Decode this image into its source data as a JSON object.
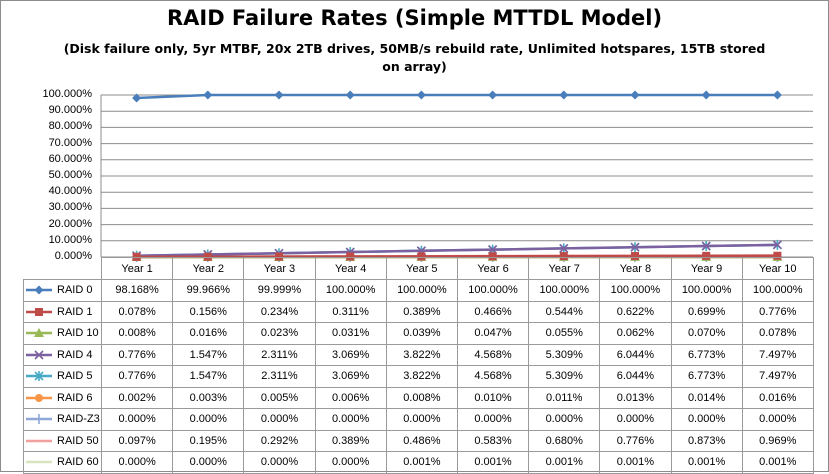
{
  "chart_data": {
    "type": "line",
    "title": "RAID Failure Rates (Simple MTTDL Model)",
    "subtitle": "(Disk failure only, 5yr MTBF, 20x 2TB drives, 50MB/s rebuild rate, Unlimited hotspares, 15TB stored on array)",
    "categories": [
      "Year 1",
      "Year 2",
      "Year 3",
      "Year 4",
      "Year 5",
      "Year 6",
      "Year 7",
      "Year 8",
      "Year 9",
      "Year 10"
    ],
    "ylim": [
      0,
      100
    ],
    "yticks": [
      "100.000%",
      "90.000%",
      "80.000%",
      "70.000%",
      "60.000%",
      "50.000%",
      "40.000%",
      "30.000%",
      "20.000%",
      "10.000%",
      "0.000%"
    ],
    "grid": true,
    "legend": "data-table",
    "series": [
      {
        "name": "RAID 0",
        "color": "#4a7ebb",
        "marker": "diamond",
        "values": [
          98.168,
          99.966,
          99.999,
          100.0,
          100.0,
          100.0,
          100.0,
          100.0,
          100.0,
          100.0
        ],
        "labels": [
          "98.168%",
          "99.966%",
          "99.999%",
          "100.000%",
          "100.000%",
          "100.000%",
          "100.000%",
          "100.000%",
          "100.000%",
          "100.000%"
        ]
      },
      {
        "name": "RAID 1",
        "color": "#be4b48",
        "marker": "square",
        "values": [
          0.078,
          0.156,
          0.234,
          0.311,
          0.389,
          0.466,
          0.544,
          0.622,
          0.699,
          0.776
        ],
        "labels": [
          "0.078%",
          "0.156%",
          "0.234%",
          "0.311%",
          "0.389%",
          "0.466%",
          "0.544%",
          "0.622%",
          "0.699%",
          "0.776%"
        ]
      },
      {
        "name": "RAID 10",
        "color": "#98b954",
        "marker": "triangle",
        "values": [
          0.008,
          0.016,
          0.023,
          0.031,
          0.039,
          0.047,
          0.055,
          0.062,
          0.07,
          0.078
        ],
        "labels": [
          "0.008%",
          "0.016%",
          "0.023%",
          "0.031%",
          "0.039%",
          "0.047%",
          "0.055%",
          "0.062%",
          "0.070%",
          "0.078%"
        ]
      },
      {
        "name": "RAID 4",
        "color": "#7d60a0",
        "marker": "x",
        "values": [
          0.776,
          1.547,
          2.311,
          3.069,
          3.822,
          4.568,
          5.309,
          6.044,
          6.773,
          7.497
        ],
        "labels": [
          "0.776%",
          "1.547%",
          "2.311%",
          "3.069%",
          "3.822%",
          "4.568%",
          "5.309%",
          "6.044%",
          "6.773%",
          "7.497%"
        ]
      },
      {
        "name": "RAID 5",
        "color": "#46aac5",
        "marker": "star",
        "values": [
          0.776,
          1.547,
          2.311,
          3.069,
          3.822,
          4.568,
          5.309,
          6.044,
          6.773,
          7.497
        ],
        "labels": [
          "0.776%",
          "1.547%",
          "2.311%",
          "3.069%",
          "3.822%",
          "4.568%",
          "5.309%",
          "6.044%",
          "6.773%",
          "7.497%"
        ]
      },
      {
        "name": "RAID 6",
        "color": "#f79646",
        "marker": "circle",
        "values": [
          0.002,
          0.003,
          0.005,
          0.006,
          0.008,
          0.01,
          0.011,
          0.013,
          0.014,
          0.016
        ],
        "labels": [
          "0.002%",
          "0.003%",
          "0.005%",
          "0.006%",
          "0.008%",
          "0.010%",
          "0.011%",
          "0.013%",
          "0.014%",
          "0.016%"
        ]
      },
      {
        "name": "RAID-Z3",
        "color": "#8fa8d8",
        "marker": "plus",
        "values": [
          0,
          0,
          0,
          0,
          0,
          0,
          0,
          0,
          0,
          0
        ],
        "labels": [
          "0.000%",
          "0.000%",
          "0.000%",
          "0.000%",
          "0.000%",
          "0.000%",
          "0.000%",
          "0.000%",
          "0.000%",
          "0.000%"
        ]
      },
      {
        "name": "RAID 50",
        "color": "#f2a09e",
        "marker": "none",
        "values": [
          0.097,
          0.195,
          0.292,
          0.389,
          0.486,
          0.583,
          0.68,
          0.776,
          0.873,
          0.969
        ],
        "labels": [
          "0.097%",
          "0.195%",
          "0.292%",
          "0.389%",
          "0.486%",
          "0.583%",
          "0.680%",
          "0.776%",
          "0.873%",
          "0.969%"
        ]
      },
      {
        "name": "RAID 60",
        "color": "#d7e4bd",
        "marker": "none",
        "values": [
          0.0,
          0.0,
          0.0,
          0.0,
          0.001,
          0.001,
          0.001,
          0.001,
          0.001,
          0.001
        ],
        "labels": [
          "0.000%",
          "0.000%",
          "0.000%",
          "0.000%",
          "0.001%",
          "0.001%",
          "0.001%",
          "0.001%",
          "0.001%",
          "0.001%"
        ]
      }
    ]
  }
}
